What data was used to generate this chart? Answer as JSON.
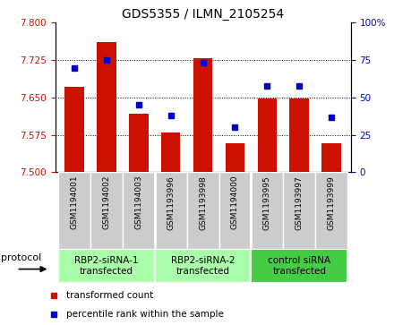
{
  "title": "GDS5355 / ILMN_2105254",
  "samples": [
    "GSM1194001",
    "GSM1194002",
    "GSM1194003",
    "GSM1193996",
    "GSM1193998",
    "GSM1194000",
    "GSM1193995",
    "GSM1193997",
    "GSM1193999"
  ],
  "bar_values": [
    7.672,
    7.762,
    7.618,
    7.58,
    7.728,
    7.558,
    7.648,
    7.648,
    7.558
  ],
  "dot_values": [
    70,
    75,
    45,
    38,
    73,
    30,
    58,
    58,
    37
  ],
  "ylim_left": [
    7.5,
    7.8
  ],
  "ylim_right": [
    0,
    100
  ],
  "yticks_left": [
    7.5,
    7.575,
    7.65,
    7.725,
    7.8
  ],
  "yticks_right": [
    0,
    25,
    50,
    75,
    100
  ],
  "bar_color": "#CC1100",
  "dot_color": "#0000CC",
  "grid_color": "#000000",
  "groups": [
    {
      "label": "RBP2-siRNA-1\ntransfected",
      "start": 0,
      "end": 3,
      "color": "#AAFFAA"
    },
    {
      "label": "RBP2-siRNA-2\ntransfected",
      "start": 3,
      "end": 6,
      "color": "#AAFFAA"
    },
    {
      "label": "control siRNA\ntransfected",
      "start": 6,
      "end": 9,
      "color": "#44CC44"
    }
  ],
  "legend_bar_label": "transformed count",
  "legend_dot_label": "percentile rank within the sample",
  "protocol_label": "protocol",
  "title_fontsize": 10,
  "tick_fontsize": 7.5,
  "sample_fontsize": 6.5,
  "group_fontsize": 7.5,
  "legend_fontsize": 7.5
}
